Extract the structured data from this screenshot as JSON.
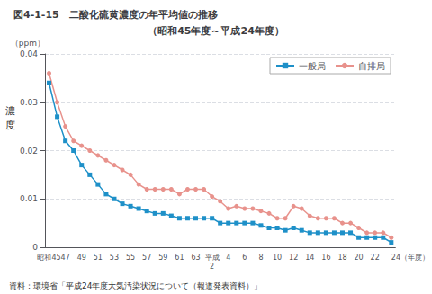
{
  "chart_data": {
    "type": "line",
    "title": "図4-1-15　二酸化硫黄濃度の年平均値の推移",
    "subtitle": "（昭和45年度～平成24年度）",
    "ylabel": "濃度",
    "y_unit": "（ppm）",
    "caption": "資料：環境省「平成24年度大気汚染状況について（報道発表資料）」",
    "categories": [
      "昭和45",
      null,
      "47",
      null,
      "49",
      null,
      "51",
      null,
      "53",
      null,
      "55",
      null,
      "57",
      null,
      "59",
      null,
      "61",
      null,
      "63",
      null,
      "平成\n2",
      null,
      "4",
      null,
      "6",
      null,
      "8",
      null,
      "10",
      null,
      "12",
      null,
      "14",
      null,
      "16",
      null,
      "18",
      null,
      "20",
      null,
      "22",
      null,
      "24（年度）"
    ],
    "series": [
      {
        "name": "一般局",
        "color": "#1e90c8",
        "marker": "square",
        "values": [
          0.034,
          0.027,
          0.022,
          0.02,
          0.017,
          0.015,
          0.013,
          0.011,
          0.01,
          0.009,
          0.0085,
          0.008,
          0.0075,
          0.007,
          0.007,
          0.0065,
          0.006,
          0.006,
          0.006,
          0.006,
          0.006,
          0.005,
          0.005,
          0.005,
          0.005,
          0.005,
          0.0045,
          0.004,
          0.004,
          0.0035,
          0.004,
          0.0035,
          0.003,
          0.003,
          0.003,
          0.003,
          0.003,
          0.003,
          0.002,
          0.002,
          0.002,
          0.002,
          0.001
        ]
      },
      {
        "name": "自排局",
        "color": "#e8928c",
        "marker": "circle",
        "values": [
          0.036,
          0.03,
          0.025,
          0.022,
          0.021,
          0.02,
          0.019,
          0.018,
          0.017,
          0.016,
          0.015,
          0.013,
          0.012,
          0.012,
          0.012,
          0.012,
          0.011,
          0.012,
          0.012,
          0.012,
          0.0105,
          0.0095,
          0.008,
          0.0085,
          0.008,
          0.008,
          0.0075,
          0.007,
          0.006,
          0.006,
          0.0085,
          0.008,
          0.0065,
          0.006,
          0.006,
          0.006,
          0.005,
          0.005,
          0.004,
          0.003,
          0.003,
          0.003,
          0.002
        ]
      }
    ],
    "ylim": [
      0,
      0.04
    ],
    "yticks": [
      0,
      0.01,
      0.02,
      0.03,
      0.04
    ],
    "grid": true,
    "legend": "upper right"
  }
}
